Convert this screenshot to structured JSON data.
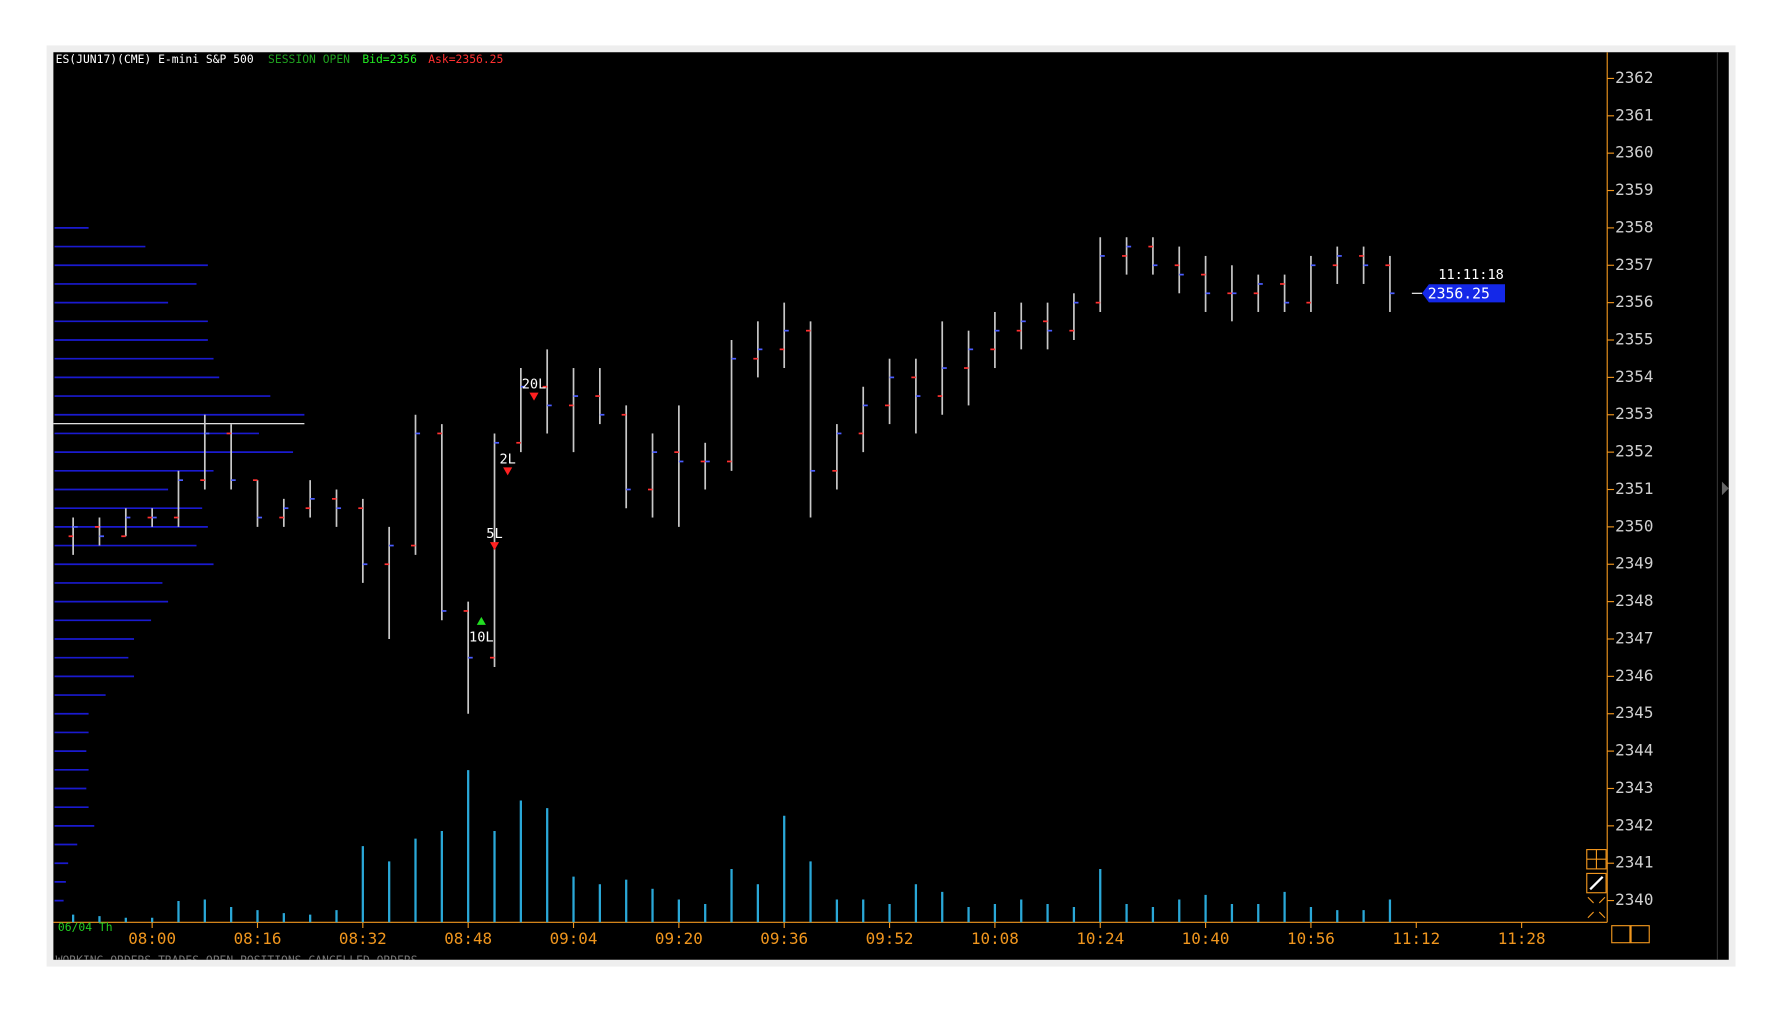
{
  "chart_data": {
    "type": "ohlc",
    "title": "ES(JUN17)(CME) E-mini S&P 500",
    "session": "SESSION OPEN",
    "bid": "Bid=2356",
    "ask": "Ask=2356.25",
    "date_label": "06/04 Th",
    "last_time": "11:11:18",
    "last_price": 2356.25,
    "tabs": "WORKING ORDERS  TRADES  OPEN POSITIONS  CANCELLED ORDERS",
    "x": [
      "07:48",
      "07:52",
      "07:56",
      "08:00",
      "08:04",
      "08:08",
      "08:12",
      "08:16",
      "08:20",
      "08:24",
      "08:28",
      "08:32",
      "08:36",
      "08:40",
      "08:44",
      "08:48",
      "08:52",
      "08:56",
      "09:00",
      "09:04",
      "09:08",
      "09:12",
      "09:16",
      "09:20",
      "09:24",
      "09:28",
      "09:32",
      "09:36",
      "09:40",
      "09:44",
      "09:48",
      "09:52",
      "09:56",
      "10:00",
      "10:04",
      "10:08",
      "10:12",
      "10:16",
      "10:20",
      "10:24",
      "10:28",
      "10:32",
      "10:36",
      "10:40",
      "10:44",
      "10:48",
      "10:52",
      "10:56",
      "11:00",
      "11:04",
      "11:08"
    ],
    "open": [
      2349.75,
      2350,
      2349.75,
      2350.25,
      2350.25,
      2351.25,
      2352.5,
      2351.25,
      2350.25,
      2350.5,
      2350.75,
      2350.5,
      2349,
      2349.5,
      2352.5,
      2347.75,
      2346.5,
      2352.25,
      2353.75,
      2353.25,
      2353.5,
      2353,
      2351,
      2352,
      2351.75,
      2351.75,
      2354.5,
      2354.75,
      2355.25,
      2351.5,
      2352.5,
      2353.25,
      2354,
      2353.5,
      2354.25,
      2354.75,
      2355.25,
      2355.5,
      2355.25,
      2356,
      2357.25,
      2357.5,
      2357,
      2356.75,
      2356.25,
      2356.25,
      2356.5,
      2356,
      2357,
      2357.25,
      2357
    ],
    "high": [
      2350.25,
      2350.25,
      2350.5,
      2350.5,
      2351.5,
      2353,
      2352.75,
      2351.25,
      2350.75,
      2351.25,
      2351,
      2350.75,
      2350,
      2353,
      2352.75,
      2348,
      2352.5,
      2354.25,
      2354.75,
      2354.25,
      2354.25,
      2353.25,
      2352.5,
      2353.25,
      2352.25,
      2355,
      2355.5,
      2356,
      2355.5,
      2352.75,
      2353.75,
      2354.5,
      2354.5,
      2355.5,
      2355.25,
      2355.75,
      2356,
      2356,
      2356.25,
      2357.75,
      2357.75,
      2357.75,
      2357.5,
      2357.25,
      2357,
      2356.75,
      2356.75,
      2357.25,
      2357.5,
      2357.5,
      2357.25
    ],
    "low": [
      2349.25,
      2349.5,
      2349.75,
      2350,
      2350,
      2351,
      2351,
      2350,
      2350,
      2350.25,
      2350,
      2348.5,
      2347,
      2349.25,
      2347.5,
      2345,
      2346.25,
      2352,
      2352.5,
      2352,
      2352.75,
      2350.5,
      2350.25,
      2350,
      2351,
      2351.5,
      2354,
      2354.25,
      2350.25,
      2351,
      2352,
      2352.75,
      2352.5,
      2353,
      2353.25,
      2354.25,
      2354.75,
      2354.75,
      2355,
      2355.75,
      2356.75,
      2356.75,
      2356.25,
      2355.75,
      2355.5,
      2355.75,
      2355.75,
      2355.75,
      2356.5,
      2356.5,
      2355.75
    ],
    "close": [
      2350,
      2349.75,
      2350.25,
      2350.25,
      2351.25,
      2352.5,
      2351.25,
      2350.25,
      2350.5,
      2350.75,
      2350.5,
      2349,
      2349.5,
      2352.5,
      2347.75,
      2346.5,
      2352.25,
      2353.75,
      2353.25,
      2353.5,
      2353,
      2351,
      2352,
      2351.75,
      2351.75,
      2354.5,
      2354.75,
      2355.25,
      2351.5,
      2352.5,
      2353.25,
      2354,
      2353.5,
      2354.25,
      2354.75,
      2355.25,
      2355.5,
      2355.25,
      2356,
      2357.25,
      2357.5,
      2357,
      2356.75,
      2356.25,
      2356.25,
      2356.5,
      2356,
      2357,
      2357.25,
      2357,
      2356.25
    ],
    "volume": [
      5,
      4,
      3,
      3,
      14,
      15,
      10,
      8,
      6,
      5,
      8,
      50,
      40,
      55,
      60,
      100,
      60,
      80,
      75,
      30,
      25,
      28,
      22,
      15,
      12,
      35,
      25,
      70,
      40,
      15,
      15,
      12,
      25,
      20,
      10,
      12,
      15,
      12,
      10,
      35,
      12,
      10,
      15,
      18,
      12,
      12,
      20,
      10,
      8,
      8,
      15
    ],
    "profile": {
      "prices": [
        2340,
        2340.5,
        2341,
        2341.5,
        2342,
        2342.5,
        2343,
        2343.5,
        2344,
        2344.5,
        2345,
        2345.5,
        2346,
        2346.5,
        2347,
        2347.5,
        2348,
        2348.5,
        2349,
        2349.5,
        2350,
        2350.5,
        2351,
        2351.5,
        2352,
        2352.5,
        2353,
        2353.5,
        2354,
        2354.5,
        2355,
        2355.5,
        2356,
        2356.5,
        2357,
        2357.5,
        2358
      ],
      "sizes": [
        8,
        10,
        12,
        20,
        35,
        30,
        28,
        30,
        28,
        30,
        30,
        45,
        70,
        65,
        70,
        85,
        100,
        95,
        140,
        125,
        135,
        130,
        100,
        140,
        210,
        180,
        220,
        190,
        145,
        140,
        135,
        135,
        100,
        125,
        135,
        80,
        30
      ]
    },
    "annotations": [
      {
        "text": "10L",
        "x": "08:50",
        "y": 2347.5,
        "color": "#22dd22"
      },
      {
        "text": "5L",
        "x": "08:52",
        "y": 2349.5,
        "color": "#ff2020"
      },
      {
        "text": "2L",
        "x": "08:54",
        "y": 2351.5,
        "color": "#ff2020"
      },
      {
        "text": "20L",
        "x": "08:58",
        "y": 2353.5,
        "color": "#ff2020"
      }
    ],
    "bar_color": "#c8c8c8",
    "open_color": "#ff3030",
    "close_color": "#4a5cff",
    "volume_color": "#2aa8d8",
    "profile_color": "#1a1ad0",
    "xlim": [
      "07:45",
      "11:41"
    ],
    "xticks": [
      "08:00",
      "08:16",
      "08:32",
      "08:48",
      "09:04",
      "09:20",
      "09:36",
      "09:52",
      "10:08",
      "10:24",
      "10:40",
      "10:56",
      "11:12",
      "11:28"
    ],
    "ylim": [
      2339.42,
      2362.7
    ],
    "yticks": [
      2340,
      2341,
      2342,
      2343,
      2344,
      2345,
      2346,
      2347,
      2348,
      2349,
      2350,
      2351,
      2352,
      2353,
      2354,
      2355,
      2356,
      2357,
      2358,
      2359,
      2360,
      2361,
      2362
    ]
  }
}
